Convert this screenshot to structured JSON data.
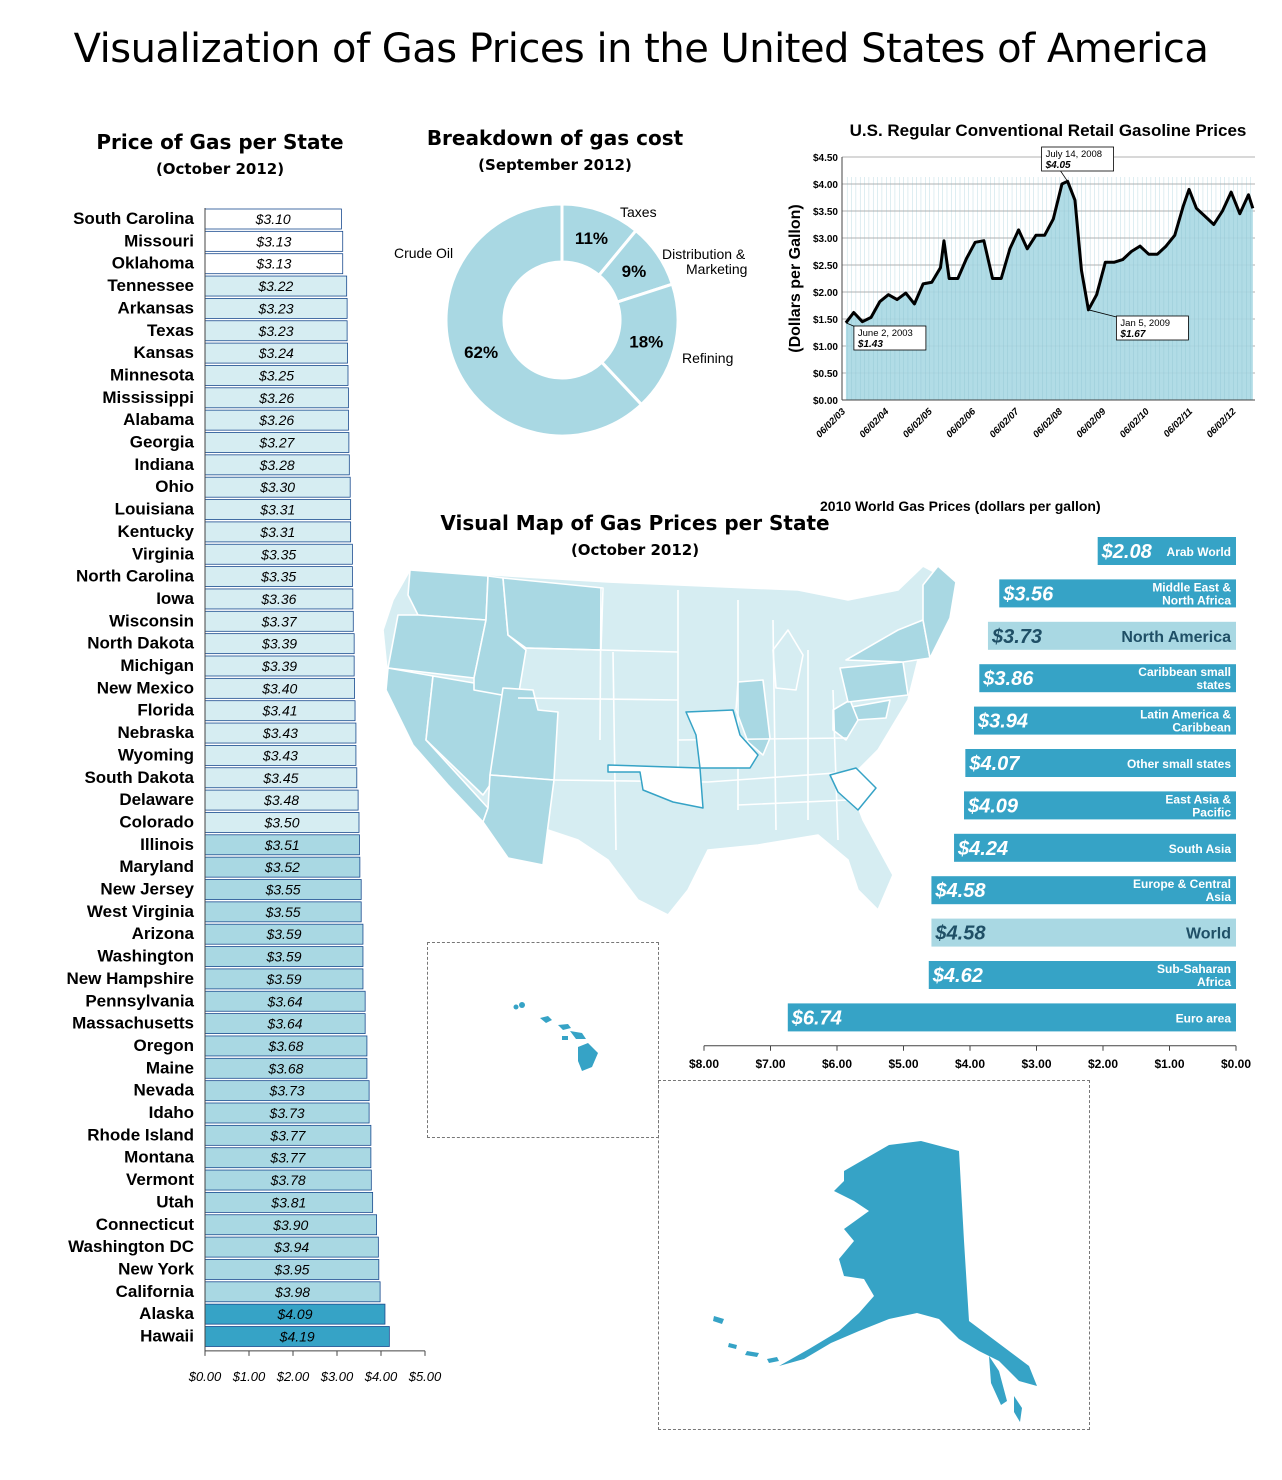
{
  "main_title": "Visualization of Gas Prices in the United States of America",
  "colors": {
    "light": "#d6edf2",
    "mid": "#a9d8e3",
    "dark": "#36a3c6",
    "white": "#ffffff",
    "outline": "#1a4b8f"
  },
  "chart_data": [
    {
      "id": "state_prices",
      "type": "bar",
      "orientation": "horizontal",
      "title": "Price of Gas per State",
      "subtitle": "(October 2012)",
      "xlim": [
        0,
        5
      ],
      "x_ticks": [
        "$0.00",
        "$1.00",
        "$2.00",
        "$3.00",
        "$4.00",
        "$5.00"
      ],
      "categories": [
        "South Carolina",
        "Missouri",
        "Oklahoma",
        "Tennessee",
        "Arkansas",
        "Texas",
        "Kansas",
        "Minnesota",
        "Mississippi",
        "Alabama",
        "Georgia",
        "Indiana",
        "Ohio",
        "Louisiana",
        "Kentucky",
        "Virginia",
        "North Carolina",
        "Iowa",
        "Wisconsin",
        "North Dakota",
        "Michigan",
        "New Mexico",
        "Florida",
        "Nebraska",
        "Wyoming",
        "South Dakota",
        "Delaware",
        "Colorado",
        "Illinois",
        "Maryland",
        "New Jersey",
        "West Virginia",
        "Arizona",
        "Washington",
        "New Hampshire",
        "Pennsylvania",
        "Massachusetts",
        "Oregon",
        "Maine",
        "Nevada",
        "Idaho",
        "Rhode Island",
        "Montana",
        "Vermont",
        "Utah",
        "Connecticut",
        "Washington DC",
        "New York",
        "California",
        "Alaska",
        "Hawaii"
      ],
      "values": [
        3.1,
        3.13,
        3.13,
        3.22,
        3.23,
        3.23,
        3.24,
        3.25,
        3.26,
        3.26,
        3.27,
        3.28,
        3.3,
        3.31,
        3.31,
        3.35,
        3.35,
        3.36,
        3.37,
        3.39,
        3.39,
        3.4,
        3.41,
        3.43,
        3.43,
        3.45,
        3.48,
        3.5,
        3.51,
        3.52,
        3.55,
        3.55,
        3.59,
        3.59,
        3.59,
        3.64,
        3.64,
        3.68,
        3.68,
        3.73,
        3.73,
        3.77,
        3.77,
        3.78,
        3.81,
        3.9,
        3.94,
        3.95,
        3.98,
        4.09,
        4.19
      ],
      "labels": [
        "$3.10",
        "$3.13",
        "$3.13",
        "$3.22",
        "$3.23",
        "$3.23",
        "$3.24",
        "$3.25",
        "$3.26",
        "$3.26",
        "$3.27",
        "$3.28",
        "$3.30",
        "$3.31",
        "$3.31",
        "$3.35",
        "$3.35",
        "$3.36",
        "$3.37",
        "$3.39",
        "$3.39",
        "$3.40",
        "$3.41",
        "$3.43",
        "$3.43",
        "$3.45",
        "$3.48",
        "$3.50",
        "$3.51",
        "$3.52",
        "$3.55",
        "$3.55",
        "$3.59",
        "$3.59",
        "$3.59",
        "$3.64",
        "$3.64",
        "$3.68",
        "$3.68",
        "$3.73",
        "$3.73",
        "$3.77",
        "$3.77",
        "$3.78",
        "$3.81",
        "$3.90",
        "$3.94",
        "$3.95",
        "$3.98",
        "$4.09",
        "$4.19"
      ],
      "tiers": [
        0,
        0,
        0,
        1,
        1,
        1,
        1,
        1,
        1,
        1,
        1,
        1,
        1,
        1,
        1,
        1,
        1,
        1,
        1,
        1,
        1,
        1,
        1,
        1,
        1,
        1,
        1,
        1,
        2,
        2,
        2,
        2,
        2,
        2,
        2,
        2,
        2,
        2,
        2,
        2,
        2,
        2,
        2,
        2,
        2,
        2,
        2,
        2,
        2,
        3,
        3
      ]
    },
    {
      "id": "cost_breakdown",
      "type": "pie",
      "title": "Breakdown of gas cost",
      "subtitle": "(September 2012)",
      "slices": [
        {
          "name": "Taxes",
          "value": 11,
          "label": "11%"
        },
        {
          "name": "Distribution & Marketing",
          "value": 9,
          "label": "9%"
        },
        {
          "name": "Refining",
          "value": 18,
          "label": "18%"
        },
        {
          "name": "Crude Oil",
          "value": 62,
          "label": "62%"
        }
      ],
      "legend_text": {
        "taxes": "Taxes",
        "distribution_1": "Distribution &",
        "distribution_2": "Marketing",
        "refining": "Refining",
        "crude": "Crude Oil"
      }
    },
    {
      "id": "retail_prices",
      "type": "area",
      "title": "U.S. Regular Conventional Retail Gasoline Prices",
      "ylabel": "(Dollars per Gallon)",
      "ylim": [
        0,
        4.5
      ],
      "y_ticks": [
        "$0.00",
        "$0.50",
        "$1.00",
        "$1.50",
        "$2.00",
        "$2.50",
        "$3.00",
        "$3.50",
        "$4.00",
        "$4.50"
      ],
      "x_ticks": [
        "06/02/03",
        "06/02/04",
        "06/02/05",
        "06/02/06",
        "06/02/07",
        "06/02/08",
        "06/02/09",
        "06/02/10",
        "06/02/11",
        "06/02/12"
      ],
      "x": [
        2003.42,
        2003.6,
        2003.8,
        2004.0,
        2004.2,
        2004.4,
        2004.6,
        2004.8,
        2005.0,
        2005.2,
        2005.4,
        2005.6,
        2005.68,
        2005.8,
        2006.0,
        2006.2,
        2006.4,
        2006.6,
        2006.8,
        2007.0,
        2007.2,
        2007.4,
        2007.6,
        2007.8,
        2008.0,
        2008.2,
        2008.4,
        2008.53,
        2008.7,
        2008.85,
        2009.01,
        2009.2,
        2009.4,
        2009.6,
        2009.8,
        2010.0,
        2010.2,
        2010.4,
        2010.6,
        2010.8,
        2011.0,
        2011.2,
        2011.33,
        2011.5,
        2011.7,
        2011.9,
        2012.1,
        2012.3,
        2012.5,
        2012.7,
        2012.8
      ],
      "y": [
        1.43,
        1.62,
        1.45,
        1.53,
        1.82,
        1.95,
        1.86,
        1.98,
        1.78,
        2.15,
        2.18,
        2.45,
        2.95,
        2.25,
        2.25,
        2.62,
        2.92,
        2.95,
        2.25,
        2.25,
        2.8,
        3.15,
        2.8,
        3.05,
        3.05,
        3.35,
        4.0,
        4.05,
        3.7,
        2.4,
        1.67,
        1.95,
        2.55,
        2.55,
        2.6,
        2.75,
        2.85,
        2.7,
        2.7,
        2.85,
        3.05,
        3.6,
        3.9,
        3.55,
        3.4,
        3.25,
        3.5,
        3.85,
        3.45,
        3.8,
        3.55
      ],
      "annotations": [
        {
          "date": "June 2, 2003",
          "value": "$1.43",
          "x": 2003.42,
          "y": 1.43
        },
        {
          "date": "July 14, 2008",
          "value": "$4.05",
          "x": 2008.53,
          "y": 4.05
        },
        {
          "date": "Jan 5, 2009",
          "value": "$1.67",
          "x": 2009.01,
          "y": 1.67
        }
      ]
    },
    {
      "id": "world_prices",
      "type": "bar",
      "orientation": "horizontal",
      "title": "2010 World Gas Prices (dollars per gallon)",
      "xlim": [
        0,
        8
      ],
      "x_reversed": true,
      "x_ticks": [
        "$8.00",
        "$7.00",
        "$6.00",
        "$5.00",
        "$4.00",
        "$3.00",
        "$2.00",
        "$1.00",
        "$0.00"
      ],
      "categories": [
        {
          "line1": "Arab World",
          "line2": ""
        },
        {
          "line1": "Middle East &",
          "line2": "North Africa"
        },
        {
          "line1": "North America",
          "line2": ""
        },
        {
          "line1": "Caribbean small",
          "line2": "states"
        },
        {
          "line1": "Latin America &",
          "line2": "Caribbean"
        },
        {
          "line1": "Other small states",
          "line2": ""
        },
        {
          "line1": "East Asia &",
          "line2": "Pacific"
        },
        {
          "line1": "South Asia",
          "line2": ""
        },
        {
          "line1": "Europe & Central",
          "line2": "Asia"
        },
        {
          "line1": "World",
          "line2": ""
        },
        {
          "line1": "Sub-Saharan",
          "line2": "Africa"
        },
        {
          "line1": "Euro area",
          "line2": ""
        }
      ],
      "values": [
        2.08,
        3.56,
        3.73,
        3.86,
        3.94,
        4.07,
        4.09,
        4.24,
        4.58,
        4.58,
        4.62,
        6.74
      ],
      "labels": [
        "$2.08",
        "$3.56",
        "$3.73",
        "$3.86",
        "$3.94",
        "$4.07",
        "$4.09",
        "$4.24",
        "$4.58",
        "$4.58",
        "$4.62",
        "$6.74"
      ],
      "highlighted": [
        false,
        false,
        true,
        false,
        false,
        false,
        false,
        false,
        false,
        true,
        false,
        false
      ]
    }
  ],
  "map": {
    "title": "Visual Map of Gas Prices per State",
    "subtitle": "(October 2012)"
  }
}
